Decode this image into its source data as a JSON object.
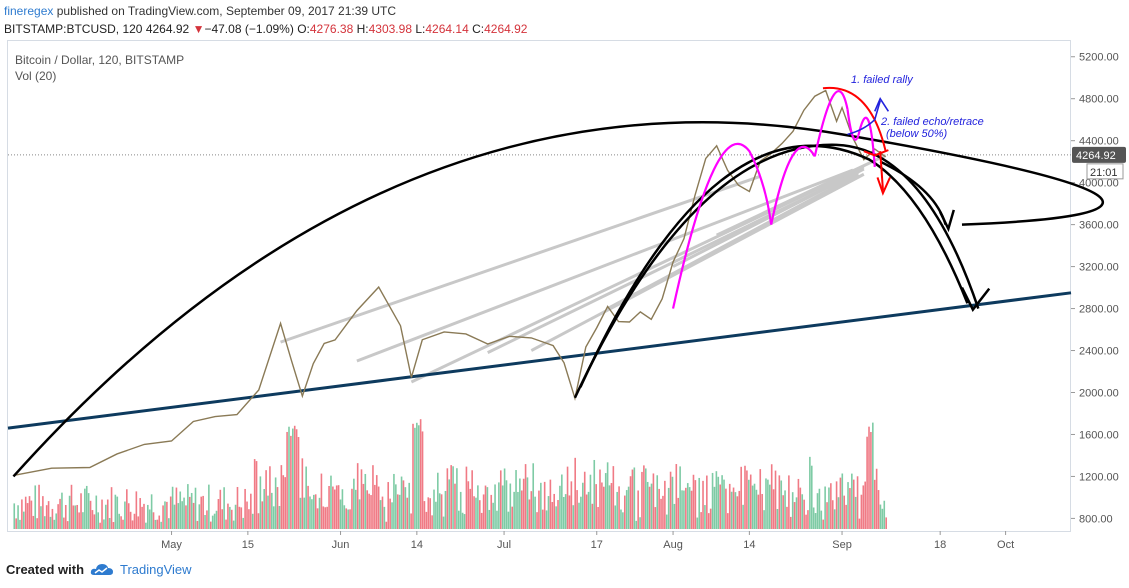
{
  "header": {
    "author": "fineregex",
    "published_text": "published on TradingView.com, September 09, 2017 21:39 UTC",
    "symbol": "BITSTAMP:BTCUSD, 120",
    "last": "4264.92",
    "change": "−47.08 (−1.09%)",
    "open_label": "O:",
    "open": "4276.38",
    "high_label": "H:",
    "high": "4303.98",
    "low_label": "L:",
    "low": "4264.14",
    "close_label": "C:",
    "close": "4264.92"
  },
  "legend": {
    "line1": "Bitcoin / Dollar, 120, BITSTAMP",
    "line2": "Vol (20)"
  },
  "footer": {
    "created_with": "Created with",
    "brand": "TradingView"
  },
  "colors": {
    "up": "#53b987",
    "down": "#eb4d5c",
    "price_line": "#8a7a56",
    "arc": "#000000",
    "trend": "#0d3a5e",
    "magenta": "#ff00ff",
    "red_arc": "#ff0000",
    "blue": "#2222dd",
    "grey_lines": "#c8c8c8",
    "last_price_bg": "#555555"
  },
  "chart_data": {
    "type": "line",
    "title": "Bitcoin / Dollar, 120, BITSTAMP",
    "price_axis": {
      "ticks": [
        "5200.00",
        "4800.00",
        "4400.00",
        "4000.00",
        "3600.00",
        "3200.00",
        "2800.00",
        "2400.00",
        "2000.00",
        "1600.00",
        "1200.00",
        "800.00"
      ],
      "tick_values": [
        5200,
        4800,
        4400,
        4000,
        3600,
        3200,
        2800,
        2400,
        2000,
        1600,
        1200,
        800
      ],
      "ylim": [
        680,
        5350
      ],
      "last_price_label": "4264.92",
      "last_price": 4264.92,
      "countdown_label": "21:01"
    },
    "time_axis": {
      "ticks": [
        "May",
        "15",
        "Jun",
        "14",
        "Jul",
        "17",
        "Aug",
        "14",
        "Sep",
        "18",
        "Oct"
      ],
      "tick_days": [
        0,
        14,
        31,
        45,
        61,
        78,
        92,
        106,
        123,
        141,
        153
      ],
      "xlim": [
        -30,
        165
      ],
      "origin_note": "day 0 = May 1 2017"
    },
    "price_series": {
      "name": "BTCUSD",
      "x": [
        -29,
        -22,
        -15,
        -10,
        -5,
        0,
        4,
        8,
        12,
        16,
        20,
        22,
        24,
        26,
        28,
        30,
        34,
        38,
        42,
        44,
        46,
        50,
        54,
        58,
        62,
        66,
        70,
        72,
        74,
        76,
        78,
        80,
        82,
        84,
        86,
        88,
        90,
        92,
        94,
        96,
        98,
        100,
        102,
        104,
        106,
        108,
        110,
        112,
        114,
        116,
        118,
        120,
        122,
        123,
        125,
        127,
        129,
        131
      ],
      "y": [
        1210,
        1260,
        1310,
        1400,
        1500,
        1560,
        1700,
        1780,
        1800,
        2000,
        2680,
        2300,
        1950,
        2300,
        2450,
        2500,
        2800,
        2980,
        2650,
        2150,
        2480,
        2600,
        2550,
        2450,
        2560,
        2500,
        2450,
        2300,
        1920,
        2450,
        2620,
        2800,
        2700,
        2660,
        2760,
        2720,
        2870,
        3250,
        3480,
        3850,
        4250,
        4350,
        4100,
        4000,
        3900,
        4200,
        4300,
        4350,
        4500,
        4700,
        4800,
        4900,
        4580,
        4700,
        4450,
        4200,
        4320,
        4265
      ]
    },
    "volume": {
      "name": "Vol (20)",
      "note": "volume bars drawn in lower pane, max spike near day 22 and day 128"
    },
    "annotations": {
      "failed_rally": "1. failed rally",
      "failed_echo": "2. failed echo/retrace",
      "below_50": "(below 50%)"
    },
    "trendline": {
      "from": [
        -30,
        1660
      ],
      "to": [
        165,
        2950
      ]
    },
    "target_price": 2800,
    "grid": false,
    "legend_position": "top-left"
  }
}
